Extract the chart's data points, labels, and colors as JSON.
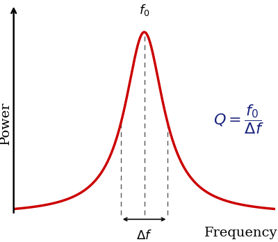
{
  "background_color": "#ffffff",
  "curve_color": "#cc0000",
  "curve_linewidth": 2.5,
  "axis_color": "#000000",
  "dashed_color": "#555555",
  "f0": 0.0,
  "sigma": 0.18,
  "half_bandwidth": 0.18,
  "x_min": -1.0,
  "x_max": 1.0,
  "y_min": -0.05,
  "y_max": 1.15,
  "ylabel": "Power",
  "xlabel": "Frequency",
  "f0_label": "$f_0$",
  "delta_f_label": "$\\Delta f$",
  "Q_formula": "$Q = \\dfrac{f_0}{\\Delta f}$",
  "Q_fontsize": 16,
  "label_fontsize": 14,
  "annotation_fontsize": 13,
  "formula_color": "#1a237e"
}
